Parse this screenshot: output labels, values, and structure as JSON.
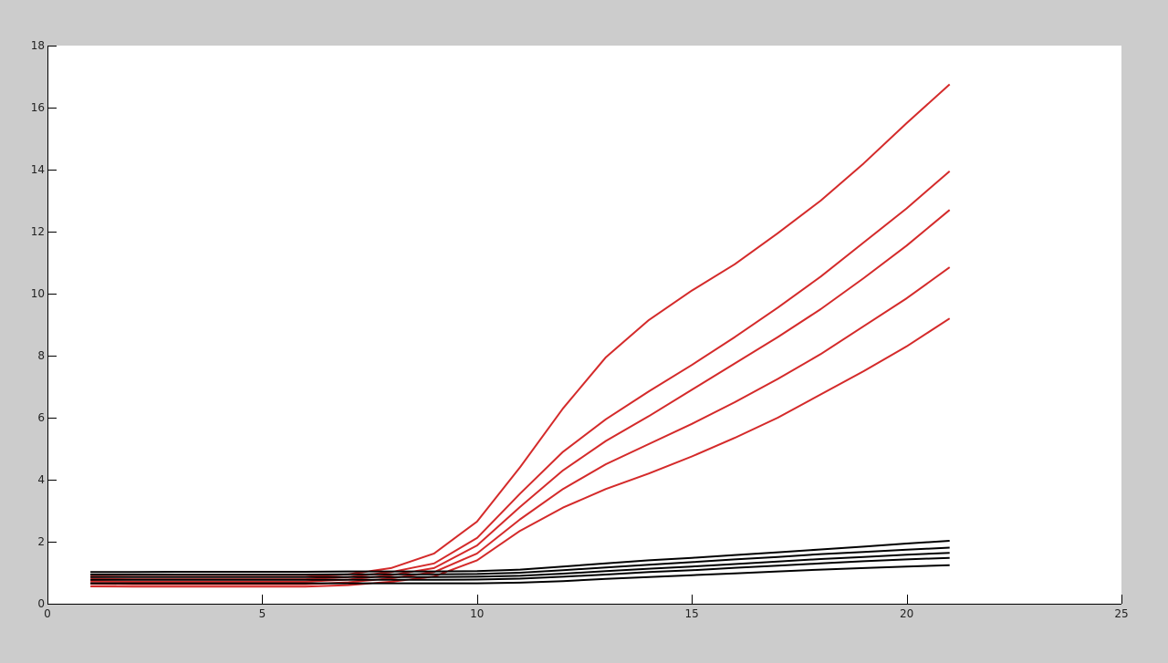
{
  "chart_data": {
    "type": "line",
    "title": "",
    "xlabel": "",
    "ylabel": "",
    "xlim": [
      0,
      25
    ],
    "ylim": [
      0,
      18
    ],
    "xticks": [
      0,
      5,
      10,
      15,
      20,
      25
    ],
    "yticks": [
      0,
      2,
      4,
      6,
      8,
      10,
      12,
      14,
      16,
      18
    ],
    "grid": false,
    "legend": "none",
    "colors": {
      "red": "#d42a2a",
      "black": "#000000",
      "axes_bg": "#ffffff",
      "figure_bg": "#cccccc"
    },
    "x": [
      1,
      2,
      3,
      4,
      5,
      6,
      7,
      8,
      9,
      10,
      11,
      12,
      13,
      14,
      15,
      16,
      17,
      18,
      19,
      20,
      21
    ],
    "series": [
      {
        "color": "#d42a2a",
        "values": [
          0.88,
          0.87,
          0.87,
          0.87,
          0.87,
          0.87,
          0.95,
          1.15,
          1.62,
          2.65,
          4.4,
          6.3,
          7.95,
          9.15,
          10.1,
          10.95,
          11.95,
          13.0,
          14.2,
          15.5,
          16.75
        ]
      },
      {
        "color": "#d42a2a",
        "values": [
          0.8,
          0.79,
          0.79,
          0.79,
          0.79,
          0.79,
          0.86,
          1.02,
          1.3,
          2.12,
          3.55,
          4.9,
          5.95,
          6.85,
          7.7,
          8.6,
          9.55,
          10.55,
          11.65,
          12.75,
          13.95
        ]
      },
      {
        "color": "#d42a2a",
        "values": [
          0.72,
          0.71,
          0.71,
          0.71,
          0.71,
          0.71,
          0.78,
          0.92,
          1.15,
          1.88,
          3.12,
          4.3,
          5.25,
          6.05,
          6.9,
          7.75,
          8.6,
          9.5,
          10.5,
          11.55,
          12.7
        ]
      },
      {
        "color": "#d42a2a",
        "values": [
          0.64,
          0.63,
          0.63,
          0.63,
          0.63,
          0.63,
          0.69,
          0.82,
          1.02,
          1.62,
          2.72,
          3.7,
          4.5,
          5.15,
          5.8,
          6.5,
          7.25,
          8.05,
          8.95,
          9.85,
          10.85
        ]
      },
      {
        "color": "#d42a2a",
        "values": [
          0.56,
          0.55,
          0.55,
          0.55,
          0.55,
          0.55,
          0.6,
          0.71,
          0.88,
          1.4,
          2.35,
          3.1,
          3.7,
          4.2,
          4.75,
          5.35,
          6.0,
          6.75,
          7.5,
          8.3,
          9.2
        ]
      },
      {
        "color": "#000000",
        "values": [
          1.02,
          1.02,
          1.03,
          1.03,
          1.03,
          1.03,
          1.04,
          1.04,
          1.04,
          1.05,
          1.1,
          1.2,
          1.3,
          1.4,
          1.48,
          1.57,
          1.66,
          1.75,
          1.84,
          1.94,
          2.03
        ]
      },
      {
        "color": "#000000",
        "values": [
          0.94,
          0.94,
          0.94,
          0.94,
          0.94,
          0.94,
          0.95,
          0.95,
          0.95,
          0.96,
          1.0,
          1.08,
          1.17,
          1.26,
          1.34,
          1.43,
          1.51,
          1.6,
          1.67,
          1.74,
          1.81
        ]
      },
      {
        "color": "#000000",
        "values": [
          0.86,
          0.86,
          0.86,
          0.86,
          0.86,
          0.86,
          0.86,
          0.86,
          0.86,
          0.87,
          0.9,
          0.97,
          1.05,
          1.13,
          1.2,
          1.28,
          1.36,
          1.44,
          1.51,
          1.58,
          1.64
        ]
      },
      {
        "color": "#000000",
        "values": [
          0.77,
          0.77,
          0.77,
          0.77,
          0.77,
          0.77,
          0.77,
          0.77,
          0.77,
          0.78,
          0.81,
          0.87,
          0.94,
          1.02,
          1.08,
          1.16,
          1.23,
          1.3,
          1.37,
          1.43,
          1.48
        ]
      },
      {
        "color": "#000000",
        "values": [
          0.66,
          0.66,
          0.66,
          0.66,
          0.66,
          0.66,
          0.66,
          0.66,
          0.66,
          0.66,
          0.68,
          0.73,
          0.8,
          0.86,
          0.92,
          0.98,
          1.04,
          1.1,
          1.15,
          1.2,
          1.24
        ]
      }
    ]
  }
}
